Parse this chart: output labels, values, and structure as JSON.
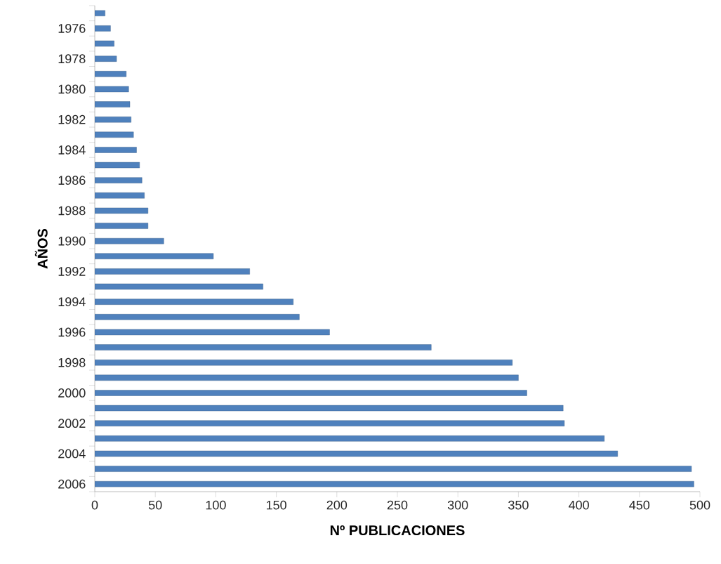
{
  "chart_data": {
    "type": "bar",
    "orientation": "horizontal",
    "xlabel": "Nº PUBLICACIONES",
    "ylabel": "AÑOS",
    "categories": [
      null,
      "1976",
      null,
      "1978",
      null,
      "1980",
      null,
      "1982",
      null,
      "1984",
      null,
      "1986",
      null,
      "1988",
      null,
      "1990",
      null,
      "1992",
      null,
      "1994",
      null,
      "1996",
      null,
      "1998",
      null,
      "2000",
      null,
      "2002",
      null,
      "2004",
      null,
      "2006"
    ],
    "values": [
      8.5,
      13,
      16,
      18,
      26,
      28,
      29,
      30,
      32,
      34.5,
      37,
      39,
      41,
      44,
      44,
      57,
      98,
      128,
      139,
      164,
      169,
      194,
      278,
      345,
      350,
      357,
      387,
      388,
      421,
      432,
      493,
      495
    ],
    "color": "#4f81bd",
    "xlim": [
      0,
      500
    ],
    "xticks": [
      0,
      50,
      100,
      150,
      200,
      250,
      300,
      350,
      400,
      450,
      500
    ]
  }
}
